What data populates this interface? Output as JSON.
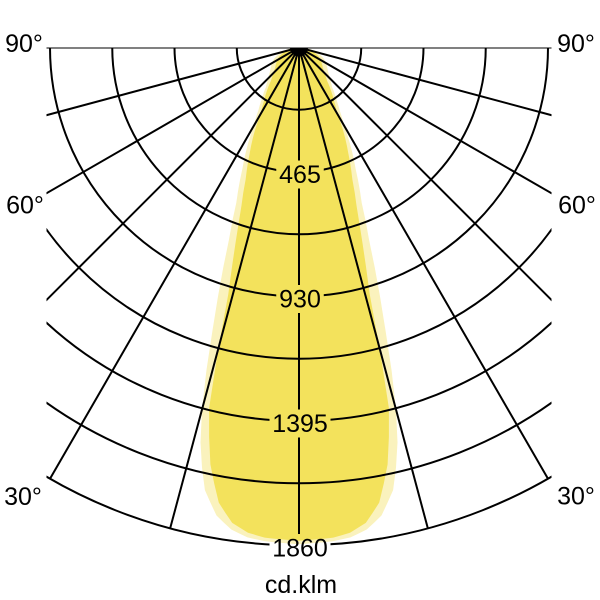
{
  "page": {
    "background": "#ffffff"
  },
  "chart_data": {
    "type": "polar",
    "subtype": "luminous-intensity-distribution",
    "title": "",
    "unit_label": "cd.klm",
    "radial_tick_labels": [
      "465",
      "930",
      "1395",
      "1860"
    ],
    "radial_tick_values": [
      465,
      930,
      1395,
      1860
    ],
    "radial_minor_step": 232.5,
    "radial_max": 1860,
    "angle_grid_step_deg": 15,
    "angle_grid_max_deg": 90,
    "angle_labels": [
      "90°",
      "60°",
      "30°"
    ],
    "angle_label_values_deg": [
      90,
      60,
      30
    ],
    "angle_labels_both_sides": true,
    "grid_on": true,
    "colors": {
      "beam_outer": "#FAF2BD",
      "beam_inner": "#F3E25C",
      "grid": "#000000",
      "text": "#000000",
      "origin_marker": "#000000",
      "background": "#ffffff"
    },
    "series": [
      {
        "name": "outer-pale-curve",
        "color": "#FAF2BD",
        "points_deg_cd": [
          [
            0,
            1855
          ],
          [
            4,
            1848
          ],
          [
            6,
            1840
          ],
          [
            8,
            1818
          ],
          [
            10,
            1775
          ],
          [
            12,
            1690
          ],
          [
            13,
            1610
          ],
          [
            14,
            1520
          ],
          [
            15,
            1400
          ],
          [
            16,
            1255
          ],
          [
            17,
            1105
          ],
          [
            18,
            980
          ],
          [
            19,
            870
          ],
          [
            20,
            765
          ],
          [
            22,
            625
          ],
          [
            25,
            500
          ],
          [
            28,
            405
          ],
          [
            30,
            338
          ],
          [
            33,
            278
          ],
          [
            36,
            235
          ],
          [
            40,
            192
          ],
          [
            45,
            162
          ],
          [
            50,
            142
          ],
          [
            55,
            128
          ],
          [
            60,
            116
          ],
          [
            65,
            104
          ],
          [
            70,
            86
          ],
          [
            75,
            66
          ],
          [
            80,
            46
          ],
          [
            85,
            26
          ],
          [
            90,
            10
          ]
        ]
      },
      {
        "name": "inner-bright-curve",
        "color": "#F3E25C",
        "points_deg_cd": [
          [
            0,
            1842
          ],
          [
            4,
            1835
          ],
          [
            6,
            1822
          ],
          [
            8,
            1793
          ],
          [
            10,
            1726
          ],
          [
            12,
            1592
          ],
          [
            13,
            1492
          ],
          [
            14,
            1388
          ],
          [
            15,
            1165
          ],
          [
            16,
            958
          ],
          [
            17,
            856
          ],
          [
            18,
            768
          ],
          [
            19,
            692
          ],
          [
            20,
            628
          ],
          [
            22,
            532
          ],
          [
            25,
            436
          ],
          [
            28,
            352
          ],
          [
            30,
            288
          ],
          [
            33,
            242
          ],
          [
            36,
            208
          ],
          [
            40,
            163
          ],
          [
            45,
            134
          ],
          [
            50,
            116
          ],
          [
            55,
            104
          ],
          [
            60,
            94
          ],
          [
            65,
            83
          ],
          [
            70,
            66
          ],
          [
            75,
            51
          ],
          [
            80,
            36
          ],
          [
            85,
            20
          ],
          [
            90,
            6
          ]
        ]
      }
    ]
  }
}
